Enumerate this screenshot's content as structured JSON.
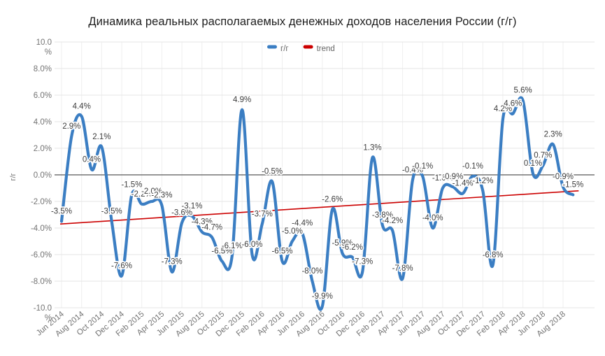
{
  "title": "Динамика реальных располагаемых денежных доходов населения России (г/г)",
  "chart_data": {
    "type": "line",
    "title": "Динамика реальных располагаемых денежных доходов населения России (г/г)",
    "ylabel": "г/г",
    "y_unit": "%",
    "ylim": [
      -10,
      10
    ],
    "y_tick_step": 2,
    "grid": true,
    "legend_position": "top-center",
    "smoothing": "spline",
    "data_labels_format": "0.0%",
    "x": [
      "Jun 2014",
      "Jul 2014",
      "Aug 2014",
      "Sep 2014",
      "Oct 2014",
      "Nov 2014",
      "Dec 2014",
      "Jan 2015",
      "Feb 2015",
      "Mar 2015",
      "Apr 2015",
      "May 2015",
      "Jun 2015",
      "Jul 2015",
      "Aug 2015",
      "Sep 2015",
      "Oct 2015",
      "Nov 2015",
      "Dec 2015",
      "Jan 2016",
      "Feb 2016",
      "Mar 2016",
      "Apr 2016",
      "May 2016",
      "Jun 2016",
      "Jul 2016",
      "Aug 2016",
      "Sep 2016",
      "Oct 2016",
      "Nov 2016",
      "Dec 2016",
      "Jan 2017",
      "Feb 2017",
      "Mar 2017",
      "Apr 2017",
      "May 2017",
      "Jun 2017",
      "Jul 2017",
      "Aug 2017",
      "Sep 2017",
      "Oct 2017",
      "Nov 2017",
      "Dec 2017",
      "Jan 2018",
      "Feb 2018",
      "Mar 2018",
      "Apr 2018",
      "May 2018",
      "Jun 2018",
      "Jul 2018",
      "Aug 2018",
      "Sep 2018"
    ],
    "x_ticks": [
      "Jun 2014",
      "Aug 2014",
      "Oct 2014",
      "Dec 2014",
      "Feb 2015",
      "Apr 2015",
      "Jun 2015",
      "Aug 2015",
      "Oct 2015",
      "Dec 2015",
      "Feb 2016",
      "Apr 2016",
      "Jun 2016",
      "Aug 2016",
      "Oct 2016",
      "Dec 2016",
      "Feb 2017",
      "Apr 2017",
      "Jun 2017",
      "Aug 2017",
      "Oct 2017",
      "Dec 2017",
      "Feb 2018",
      "Apr 2018",
      "Jun 2018",
      "Aug 2018"
    ],
    "y_ticks": [
      "10.0 %",
      "8.0%",
      "6.0%",
      "4.0%",
      "2.0%",
      "0.0%",
      "-2.0%",
      "-4.0%",
      "-6.0%",
      "-8.0%",
      "-10.0 %"
    ],
    "series": [
      {
        "name": "г/г",
        "color": "#3B7EC3",
        "values": [
          -3.5,
          2.9,
          4.4,
          0.4,
          2.1,
          -3.5,
          -7.6,
          -1.5,
          -2.2,
          -2.0,
          -2.3,
          -7.3,
          -3.6,
          -3.1,
          -4.3,
          -4.7,
          -6.5,
          -6.1,
          4.9,
          -6.0,
          -3.7,
          -0.5,
          -6.5,
          -5.0,
          -4.4,
          -8.0,
          -9.9,
          -2.6,
          -5.9,
          -6.2,
          -7.3,
          1.3,
          -3.8,
          -4.2,
          -7.8,
          -0.4,
          -0.1,
          -4.0,
          -1.0,
          -0.9,
          -1.4,
          -0.1,
          -1.2,
          -6.8,
          4.2,
          4.6,
          5.6,
          0.1,
          0.7,
          2.3,
          -0.9,
          -1.5
        ]
      },
      {
        "name": "trend",
        "color": "#CC0000",
        "start_value": -3.7,
        "end_value": -1.2
      }
    ],
    "colors": {
      "grid": "#E6E6E6",
      "grid_vertical": "#EFEFEF",
      "zero_line": "#2E2E2E",
      "axis_text": "#737373",
      "label_text": "#3D3D3D",
      "legend_text": "#666666",
      "title_text": "#1E1E1E"
    }
  }
}
